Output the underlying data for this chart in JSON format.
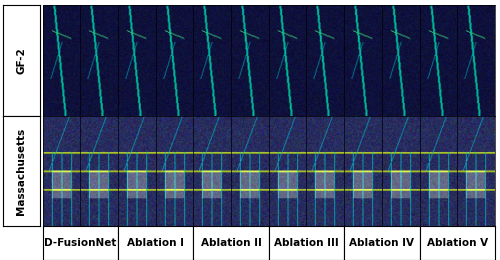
{
  "col_labels": [
    "D-FusionNet",
    "Ablation I",
    "Ablation II",
    "Ablation III",
    "Ablation IV",
    "Ablation V"
  ],
  "row_labels": [
    "GF-2",
    "Massachusetts"
  ],
  "n_cols": 6,
  "n_rows": 2,
  "images_per_col": 2,
  "background_color": "#ffffff",
  "border_color": "#000000",
  "label_fontsize": 7.5,
  "row_label_fontsize": 7.5,
  "col_label_fontsize": 7.5,
  "figure_width": 5.0,
  "figure_height": 2.6,
  "dpi": 100
}
